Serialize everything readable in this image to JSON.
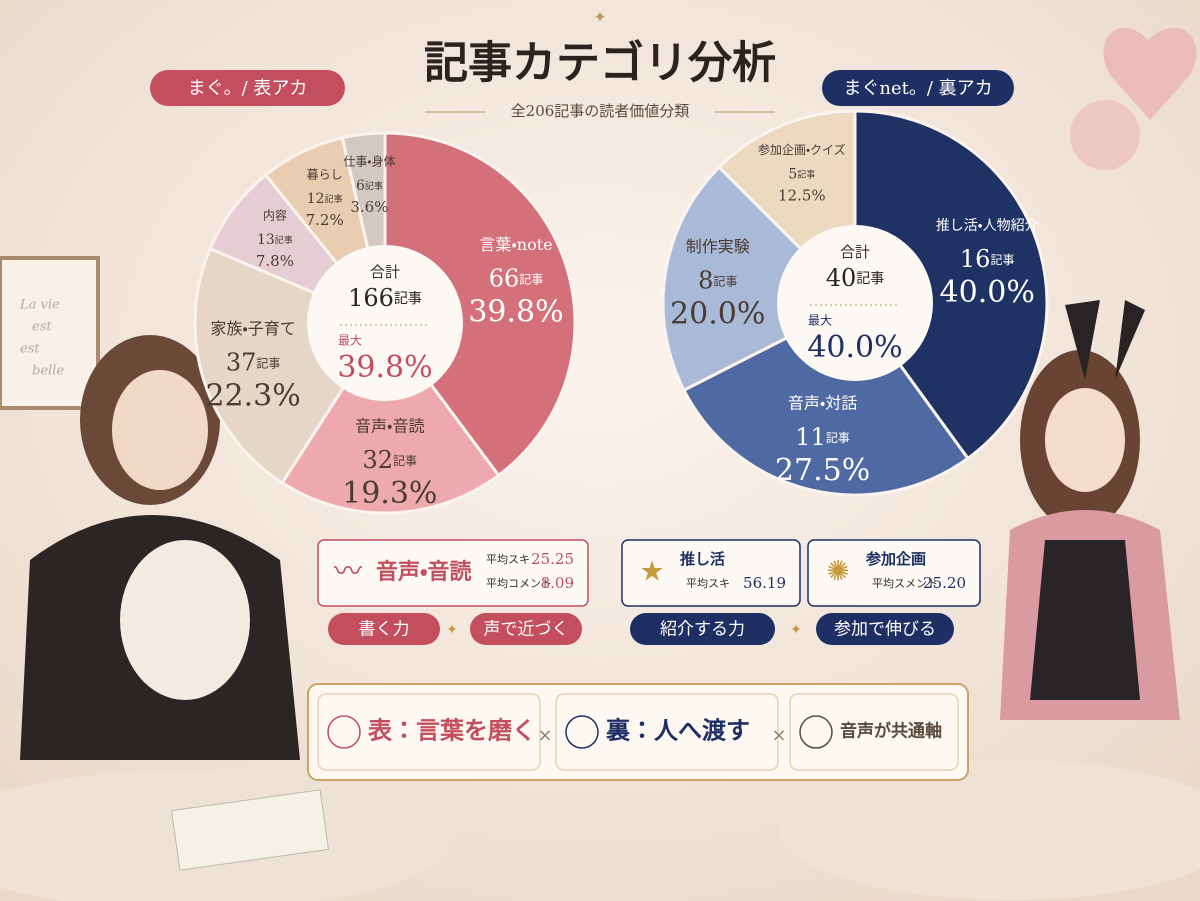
{
  "title": "記事カテゴリ分析",
  "subtitle": "全206記事の読者価値分類",
  "frame_text": [
    "La vie",
    "est",
    "est",
    "belle"
  ],
  "chart_data": [
    {
      "type": "pie",
      "account": "まぐ。/ 表アカ",
      "total_label": "合計",
      "total": 166,
      "unit": "記事",
      "max_label": "最大",
      "max": "39.8%",
      "categories": [
        "言葉・note",
        "音声・音読",
        "家族・子育て",
        "内容",
        "暮らし",
        "仕事・身体"
      ],
      "counts": [
        66,
        32,
        37,
        13,
        12,
        6
      ],
      "values": [
        39.8,
        19.3,
        22.3,
        7.8,
        7.2,
        3.6
      ],
      "value_labels": [
        "39.8%",
        "19.3%",
        "22.3%",
        "7.8%",
        "7.2%",
        "3.6%"
      ],
      "colors": [
        "#d4707a",
        "#eda9ad",
        "#e6d6c8",
        "#e6cdd3",
        "#e8cdb0",
        "#d4c9c2"
      ]
    },
    {
      "type": "pie",
      "account": "まぐnet。/ 裏アカ",
      "total_label": "合計",
      "total": 40,
      "unit": "記事",
      "max_label": "最大",
      "max": "40.0%",
      "categories": [
        "推し活・人物紹介",
        "音声・対話",
        "制作実験",
        "参加企画・クイズ"
      ],
      "counts": [
        16,
        11,
        8,
        5
      ],
      "values": [
        40.0,
        27.5,
        20.0,
        12.5
      ],
      "value_labels": [
        "40.0%",
        "27.5%",
        "20.0%",
        "12.5%"
      ],
      "colors": [
        "#1e3264",
        "#4f6aa3",
        "#a9b9d8",
        "#ecd9bf"
      ]
    }
  ],
  "stats": [
    {
      "title": "音声・音読",
      "rows": [
        {
          "label": "平均スキ",
          "value": "25.25"
        },
        {
          "label": "平均コメント",
          "value": "8.09"
        }
      ]
    },
    {
      "title": "推し活",
      "rows": [
        {
          "label": "平均スキ",
          "value": "56.19"
        }
      ]
    },
    {
      "title": "参加企画",
      "rows": [
        {
          "label": "平均スメント",
          "value": "25.20"
        }
      ]
    }
  ],
  "pills": [
    "書く力",
    "声で近づく",
    "紹介する力",
    "参加で伸びる"
  ],
  "banner": [
    "表：言葉を磨く",
    "裏：人へ渡す",
    "音声が共通軸"
  ],
  "separator": "×"
}
